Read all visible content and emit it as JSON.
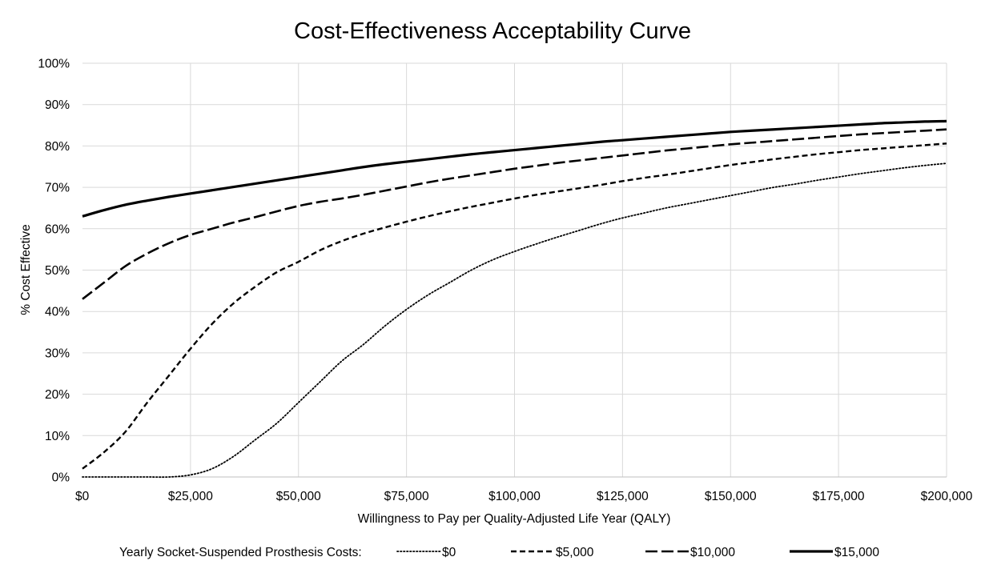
{
  "chart_data": {
    "type": "line",
    "title": "Cost-Effectiveness Acceptability Curve",
    "xlabel": "Willingness to Pay per Quality-Adjusted Life Year (QALY)",
    "ylabel": "% Cost Effective",
    "xlim": [
      0,
      200000
    ],
    "ylim": [
      0,
      100
    ],
    "x_ticks": [
      0,
      25000,
      50000,
      75000,
      100000,
      125000,
      150000,
      175000,
      200000
    ],
    "x_tick_labels": [
      "$0",
      "$25,000",
      "$50,000",
      "$75,000",
      "$100,000",
      "$125,000",
      "$150,000",
      "$175,000",
      "$200,000"
    ],
    "y_ticks": [
      0,
      10,
      20,
      30,
      40,
      50,
      60,
      70,
      80,
      90,
      100
    ],
    "y_tick_labels": [
      "0%",
      "10%",
      "20%",
      "30%",
      "40%",
      "50%",
      "60%",
      "70%",
      "80%",
      "90%",
      "100%"
    ],
    "grid": true,
    "legend_title": "Yearly Socket-Suspended Prosthesis  Costs:",
    "legend_position": "bottom",
    "x": [
      0,
      5000,
      10000,
      15000,
      20000,
      25000,
      30000,
      35000,
      40000,
      45000,
      50000,
      55000,
      60000,
      65000,
      70000,
      75000,
      80000,
      85000,
      90000,
      95000,
      100000,
      105000,
      110000,
      115000,
      120000,
      125000,
      130000,
      135000,
      140000,
      145000,
      150000,
      155000,
      160000,
      165000,
      170000,
      175000,
      180000,
      185000,
      190000,
      195000,
      200000
    ],
    "series": [
      {
        "name": "$0",
        "style": "dotted",
        "values": [
          0,
          0,
          0,
          0,
          0,
          0.5,
          2,
          5,
          9,
          13,
          18,
          23,
          28,
          32,
          36.5,
          40.5,
          44,
          47,
          50,
          52.5,
          54.5,
          56.3,
          58,
          59.6,
          61.2,
          62.6,
          63.8,
          65,
          66,
          67,
          68,
          69,
          70,
          70.8,
          71.7,
          72.5,
          73.3,
          74,
          74.7,
          75.3,
          75.8
        ]
      },
      {
        "name": "$5,000",
        "style": "short-dash",
        "values": [
          2,
          6,
          11,
          18,
          24.5,
          31,
          37,
          42,
          46,
          49.5,
          52,
          54.8,
          57,
          58.8,
          60.3,
          61.7,
          63,
          64.2,
          65.3,
          66.3,
          67.3,
          68.2,
          69,
          69.8,
          70.6,
          71.5,
          72.3,
          73,
          73.8,
          74.6,
          75.4,
          76.1,
          76.8,
          77.4,
          78,
          78.5,
          79,
          79.4,
          79.8,
          80.2,
          80.6
        ]
      },
      {
        "name": "$10,000",
        "style": "long-dash",
        "values": [
          43,
          47,
          51,
          54,
          56.5,
          58.5,
          60,
          61.5,
          62.8,
          64.2,
          65.5,
          66.5,
          67.3,
          68.2,
          69.2,
          70.2,
          71.2,
          72.1,
          72.9,
          73.7,
          74.5,
          75.2,
          75.9,
          76.5,
          77.1,
          77.7,
          78.3,
          78.9,
          79.4,
          79.9,
          80.4,
          80.8,
          81.2,
          81.6,
          82,
          82.4,
          82.8,
          83.1,
          83.4,
          83.7,
          84
        ]
      },
      {
        "name": "$15,000",
        "style": "solid",
        "values": [
          63,
          64.5,
          65.8,
          66.8,
          67.7,
          68.5,
          69.3,
          70.1,
          70.9,
          71.7,
          72.5,
          73.3,
          74.1,
          74.9,
          75.6,
          76.2,
          76.8,
          77.4,
          78,
          78.5,
          79,
          79.5,
          80,
          80.5,
          81,
          81.4,
          81.8,
          82.2,
          82.6,
          83,
          83.4,
          83.7,
          84,
          84.3,
          84.6,
          84.9,
          85.2,
          85.5,
          85.7,
          85.9,
          86
        ]
      }
    ]
  }
}
